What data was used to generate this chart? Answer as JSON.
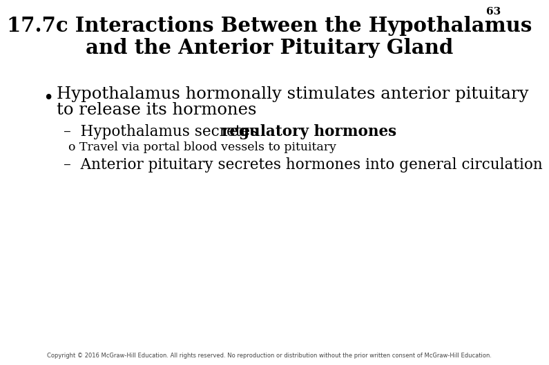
{
  "title_line1": "17.7c Interactions Between the Hypothalamus",
  "title_line2": "and the Anterior Pituitary Gland",
  "background_color": "#ffffff",
  "title_color": "#000000",
  "text_color": "#000000",
  "page_number": "63",
  "copyright_text": "Copyright © 2016 McGraw-Hill Education. All rights reserved. No reproduction or distribution without the prior written consent of McGraw-Hill Education.",
  "bullet_char": "•",
  "main_bullet_line1": "Hypothalamus hormonally stimulates anterior pituitary",
  "main_bullet_line2": "to release its hormones",
  "sub1_normal": "–  Hypothalamus secretes ",
  "sub1_bold": "regulatory hormones",
  "sub2_bullet": "o",
  "sub2_text": "Travel via portal blood vessels to pituitary",
  "sub3_text": "–  Anterior pituitary secretes hormones into general circulation",
  "title_fontsize": 21,
  "main_fontsize": 17.5,
  "sub_fontsize": 15.5,
  "small_fontsize": 12.5,
  "footer_fontsize": 6
}
